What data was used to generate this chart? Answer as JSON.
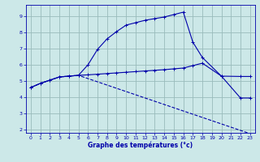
{
  "bg_color": "#cce8e8",
  "grid_color": "#99bbbb",
  "line_color": "#0000aa",
  "xlabel": "Graphe des températures (°c)",
  "xlim": [
    -0.5,
    23.5
  ],
  "ylim": [
    1.8,
    9.7
  ],
  "yticks": [
    2,
    3,
    4,
    5,
    6,
    7,
    8,
    9
  ],
  "xticks": [
    0,
    1,
    2,
    3,
    4,
    5,
    6,
    7,
    8,
    9,
    10,
    11,
    12,
    13,
    14,
    15,
    16,
    17,
    18,
    19,
    20,
    21,
    22,
    23
  ],
  "line1_x": [
    0,
    1,
    2,
    3,
    4,
    5,
    6,
    7,
    8,
    9,
    10,
    11,
    12,
    13,
    14,
    15,
    16,
    17,
    18,
    20,
    22,
    23
  ],
  "line1_y": [
    4.6,
    4.85,
    5.05,
    5.25,
    5.3,
    5.35,
    6.0,
    6.95,
    7.6,
    8.05,
    8.45,
    8.6,
    8.75,
    8.85,
    8.95,
    9.1,
    9.25,
    7.4,
    6.45,
    5.3,
    3.95,
    3.95
  ],
  "line2_x": [
    0,
    1,
    2,
    3,
    4,
    5,
    6,
    7,
    8,
    9,
    10,
    11,
    12,
    13,
    14,
    15,
    16,
    17,
    18,
    20,
    22,
    23
  ],
  "line2_y": [
    4.6,
    4.85,
    5.05,
    5.25,
    5.3,
    5.35,
    5.38,
    5.42,
    5.46,
    5.5,
    5.54,
    5.58,
    5.62,
    5.66,
    5.7,
    5.75,
    5.8,
    5.95,
    6.1,
    5.3,
    5.28,
    5.28
  ],
  "line3_x": [
    0,
    1,
    2,
    3,
    4,
    5,
    23
  ],
  "line3_y": [
    4.6,
    4.85,
    5.05,
    5.25,
    5.3,
    5.35,
    1.75
  ]
}
